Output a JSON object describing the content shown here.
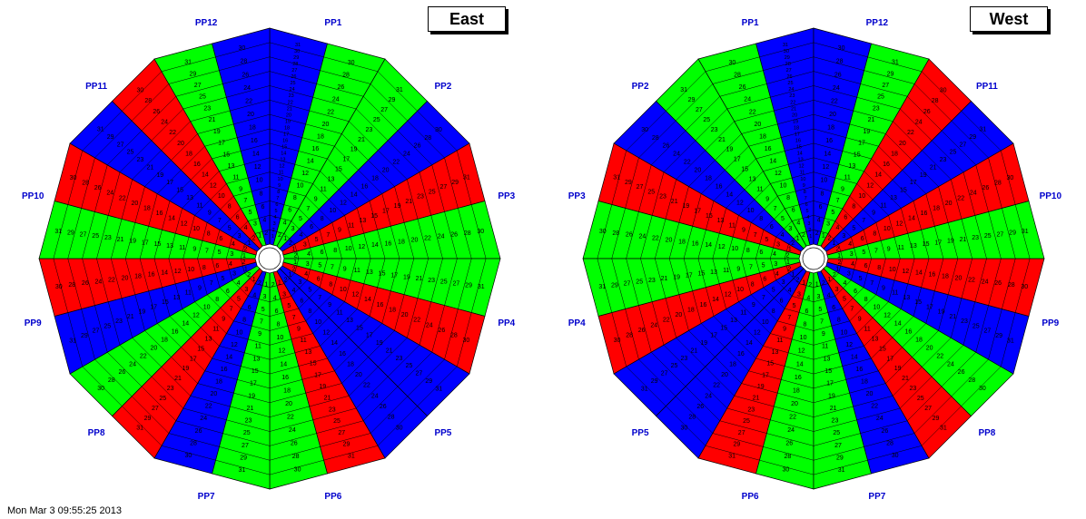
{
  "colors": {
    "red": "#ff0000",
    "green": "#00ff00",
    "blue": "#0000ff",
    "pp_label": "#0000cc",
    "ring_lines": "#000000"
  },
  "footer": {
    "text": "Mon Mar  3 09:55:25 2013"
  },
  "panels": [
    {
      "id": "east",
      "title": "East",
      "direction": "clockwise",
      "pp_labels": [
        "PP1",
        "PP2",
        "PP3",
        "PP4",
        "PP5",
        "PP6",
        "PP7",
        "PP8",
        "PP9",
        "PP10",
        "PP11",
        "PP12"
      ],
      "sector_colors": [
        "blue",
        "green",
        "green",
        "blue",
        "red",
        "green",
        "green",
        "red",
        "blue",
        "blue",
        "red",
        "green",
        "green",
        "blue",
        "red",
        "green",
        "blue",
        "red",
        "green",
        "red",
        "blue",
        "red",
        "green",
        "blue"
      ],
      "sector_rows": [
        [
          "1",
          "2",
          "3",
          "4",
          "5",
          "6",
          "7",
          "8",
          "9",
          "10",
          "11",
          "12",
          "13",
          "14",
          "15",
          "16",
          "17",
          "18",
          "19",
          "20",
          "21",
          "22",
          "23",
          "24",
          "25",
          "26",
          "27",
          "28",
          "29",
          "30",
          "31"
        ],
        [
          "2",
          "4",
          "6",
          "8",
          "10",
          "12",
          "14",
          "16",
          "18",
          "20",
          "22",
          "24",
          "26",
          "28",
          "30"
        ],
        [
          "1",
          "3",
          "5",
          "7",
          "9",
          "11",
          "13",
          "15",
          "17",
          "19",
          "21",
          "23",
          "25",
          "27",
          "29",
          "31"
        ],
        [
          "2",
          "4",
          "6",
          "8",
          "10",
          "12",
          "14",
          "16",
          "18",
          "20",
          "22",
          "24",
          "26",
          "28",
          "30"
        ],
        [
          "1",
          "3",
          "5",
          "7",
          "9",
          "11",
          "13",
          "15",
          "17",
          "19",
          "21",
          "23",
          "25",
          "27",
          "29",
          "31"
        ],
        [
          "2",
          "4",
          "6",
          "8",
          "10",
          "12",
          "14",
          "16",
          "18",
          "20",
          "22",
          "24",
          "26",
          "28",
          "30"
        ],
        [
          "1",
          "3",
          "5",
          "7",
          "9",
          "11",
          "13",
          "15",
          "17",
          "19",
          "21",
          "23",
          "25",
          "27",
          "29",
          "31"
        ],
        [
          "2",
          "4",
          "6",
          "8",
          "10",
          "12",
          "14",
          "16",
          "18",
          "20",
          "22",
          "24",
          "26",
          "28",
          "30"
        ],
        [
          "1",
          "3",
          "5",
          "7",
          "9",
          "11",
          "13",
          "15",
          "17",
          "19",
          "21",
          "23",
          "25",
          "27",
          "29",
          "31"
        ],
        [
          "2",
          "4",
          "6",
          "8",
          "10",
          "12",
          "14",
          "16",
          "18",
          "20",
          "22",
          "24",
          "26",
          "28",
          "30"
        ],
        [
          "1",
          "3",
          "5",
          "7",
          "9",
          "11",
          "13",
          "15",
          "17",
          "19",
          "21",
          "23",
          "25",
          "27",
          "29",
          "31"
        ],
        [
          "2",
          "4",
          "6",
          "8",
          "10",
          "12",
          "14",
          "16",
          "18",
          "20",
          "22",
          "24",
          "26",
          "28",
          "30"
        ],
        [
          "1",
          "3",
          "5",
          "7",
          "9",
          "11",
          "13",
          "15",
          "17",
          "19",
          "21",
          "23",
          "25",
          "27",
          "29",
          "31"
        ],
        [
          "2",
          "4",
          "6",
          "8",
          "10",
          "12",
          "14",
          "16",
          "18",
          "20",
          "22",
          "24",
          "26",
          "28",
          "30"
        ],
        [
          "1",
          "3",
          "5",
          "7",
          "9",
          "11",
          "13",
          "15",
          "17",
          "19",
          "21",
          "23",
          "25",
          "27",
          "29",
          "31"
        ],
        [
          "2",
          "4",
          "6",
          "8",
          "10",
          "12",
          "14",
          "16",
          "18",
          "20",
          "22",
          "24",
          "26",
          "28",
          "30"
        ],
        [
          "1",
          "3",
          "5",
          "7",
          "9",
          "11",
          "13",
          "15",
          "17",
          "19",
          "21",
          "23",
          "25",
          "27",
          "29",
          "31"
        ],
        [
          "2",
          "4",
          "6",
          "8",
          "10",
          "12",
          "14",
          "16",
          "18",
          "20",
          "22",
          "24",
          "26",
          "28",
          "30"
        ],
        [
          "1",
          "3",
          "5",
          "7",
          "9",
          "11",
          "13",
          "15",
          "17",
          "19",
          "21",
          "23",
          "25",
          "27",
          "29",
          "31"
        ],
        [
          "2",
          "4",
          "6",
          "8",
          "10",
          "12",
          "14",
          "16",
          "18",
          "20",
          "22",
          "24",
          "26",
          "28",
          "30"
        ],
        [
          "1",
          "3",
          "5",
          "7",
          "9",
          "11",
          "13",
          "15",
          "17",
          "19",
          "21",
          "23",
          "25",
          "27",
          "29",
          "31"
        ],
        [
          "2",
          "4",
          "6",
          "8",
          "10",
          "12",
          "14",
          "16",
          "18",
          "20",
          "22",
          "24",
          "26",
          "28",
          "30"
        ],
        [
          "1",
          "3",
          "5",
          "7",
          "9",
          "11",
          "13",
          "15",
          "17",
          "19",
          "21",
          "23",
          "25",
          "27",
          "29",
          "31"
        ],
        [
          "2",
          "4",
          "6",
          "8",
          "10",
          "12",
          "14",
          "16",
          "18",
          "20",
          "22",
          "24",
          "26",
          "28",
          "30"
        ]
      ]
    },
    {
      "id": "west",
      "title": "West",
      "direction": "counterclockwise",
      "pp_labels": [
        "PP1",
        "PP2",
        "PP3",
        "PP4",
        "PP5",
        "PP6",
        "PP7",
        "PP8",
        "PP9",
        "PP10",
        "PP11",
        "PP12"
      ],
      "sector_colors": [
        "blue",
        "green",
        "green",
        "blue",
        "red",
        "green",
        "green",
        "red",
        "blue",
        "blue",
        "red",
        "green",
        "green",
        "blue",
        "red",
        "green",
        "blue",
        "red",
        "green",
        "red",
        "blue",
        "red",
        "green",
        "blue"
      ],
      "sector_rows": [
        [
          "1",
          "2",
          "3",
          "4",
          "5",
          "6",
          "7",
          "8",
          "9",
          "10",
          "11",
          "12",
          "13",
          "14",
          "15",
          "16",
          "17",
          "18",
          "19",
          "20",
          "21",
          "22",
          "23",
          "24",
          "25",
          "26",
          "27",
          "28",
          "29",
          "30",
          "31"
        ],
        [
          "2",
          "4",
          "6",
          "8",
          "10",
          "12",
          "14",
          "16",
          "18",
          "20",
          "22",
          "24",
          "26",
          "28",
          "30"
        ],
        [
          "1",
          "3",
          "5",
          "7",
          "9",
          "11",
          "13",
          "15",
          "17",
          "19",
          "21",
          "23",
          "25",
          "27",
          "29",
          "31"
        ],
        [
          "2",
          "4",
          "6",
          "8",
          "10",
          "12",
          "14",
          "16",
          "18",
          "20",
          "22",
          "24",
          "26",
          "28",
          "30"
        ],
        [
          "1",
          "3",
          "5",
          "7",
          "9",
          "11",
          "13",
          "15",
          "17",
          "19",
          "21",
          "23",
          "25",
          "27",
          "29",
          "31"
        ],
        [
          "2",
          "4",
          "6",
          "8",
          "10",
          "12",
          "14",
          "16",
          "18",
          "20",
          "22",
          "24",
          "26",
          "28",
          "30"
        ],
        [
          "1",
          "3",
          "5",
          "7",
          "9",
          "11",
          "13",
          "15",
          "17",
          "19",
          "21",
          "23",
          "25",
          "27",
          "29",
          "31"
        ],
        [
          "2",
          "4",
          "6",
          "8",
          "10",
          "12",
          "14",
          "16",
          "18",
          "20",
          "22",
          "24",
          "26",
          "28",
          "30"
        ],
        [
          "1",
          "3",
          "5",
          "7",
          "9",
          "11",
          "13",
          "15",
          "17",
          "19",
          "21",
          "23",
          "25",
          "27",
          "29",
          "31"
        ],
        [
          "2",
          "4",
          "6",
          "8",
          "10",
          "12",
          "14",
          "16",
          "18",
          "20",
          "22",
          "24",
          "26",
          "28",
          "30"
        ],
        [
          "1",
          "3",
          "5",
          "7",
          "9",
          "11",
          "13",
          "15",
          "17",
          "19",
          "21",
          "23",
          "25",
          "27",
          "29",
          "31"
        ],
        [
          "2",
          "4",
          "6",
          "8",
          "10",
          "12",
          "14",
          "16",
          "18",
          "20",
          "22",
          "24",
          "26",
          "28",
          "30"
        ],
        [
          "1",
          "3",
          "5",
          "7",
          "9",
          "11",
          "13",
          "15",
          "17",
          "19",
          "21",
          "23",
          "25",
          "27",
          "29",
          "31"
        ],
        [
          "2",
          "4",
          "6",
          "8",
          "10",
          "12",
          "14",
          "16",
          "18",
          "20",
          "22",
          "24",
          "26",
          "28",
          "30"
        ],
        [
          "1",
          "3",
          "5",
          "7",
          "9",
          "11",
          "13",
          "15",
          "17",
          "19",
          "21",
          "23",
          "25",
          "27",
          "29",
          "31"
        ],
        [
          "2",
          "4",
          "6",
          "8",
          "10",
          "12",
          "14",
          "16",
          "18",
          "20",
          "22",
          "24",
          "26",
          "28",
          "30"
        ],
        [
          "1",
          "3",
          "5",
          "7",
          "9",
          "11",
          "13",
          "15",
          "17",
          "19",
          "21",
          "23",
          "25",
          "27",
          "29",
          "31"
        ],
        [
          "2",
          "4",
          "6",
          "8",
          "10",
          "12",
          "14",
          "16",
          "18",
          "20",
          "22",
          "24",
          "26",
          "28",
          "30"
        ],
        [
          "1",
          "3",
          "5",
          "7",
          "9",
          "11",
          "13",
          "15",
          "17",
          "19",
          "21",
          "23",
          "25",
          "27",
          "29",
          "31"
        ],
        [
          "2",
          "4",
          "6",
          "8",
          "10",
          "12",
          "14",
          "16",
          "18",
          "20",
          "22",
          "24",
          "26",
          "28",
          "30"
        ],
        [
          "1",
          "3",
          "5",
          "7",
          "9",
          "11",
          "13",
          "15",
          "17",
          "19",
          "21",
          "23",
          "25",
          "27",
          "29",
          "31"
        ],
        [
          "2",
          "4",
          "6",
          "8",
          "10",
          "12",
          "14",
          "16",
          "18",
          "20",
          "22",
          "24",
          "26",
          "28",
          "30"
        ],
        [
          "1",
          "3",
          "5",
          "7",
          "9",
          "11",
          "13",
          "15",
          "17",
          "19",
          "21",
          "23",
          "25",
          "27",
          "29",
          "31"
        ],
        [
          "2",
          "4",
          "6",
          "8",
          "10",
          "12",
          "14",
          "16",
          "18",
          "20",
          "22",
          "24",
          "26",
          "28",
          "30"
        ]
      ]
    }
  ]
}
